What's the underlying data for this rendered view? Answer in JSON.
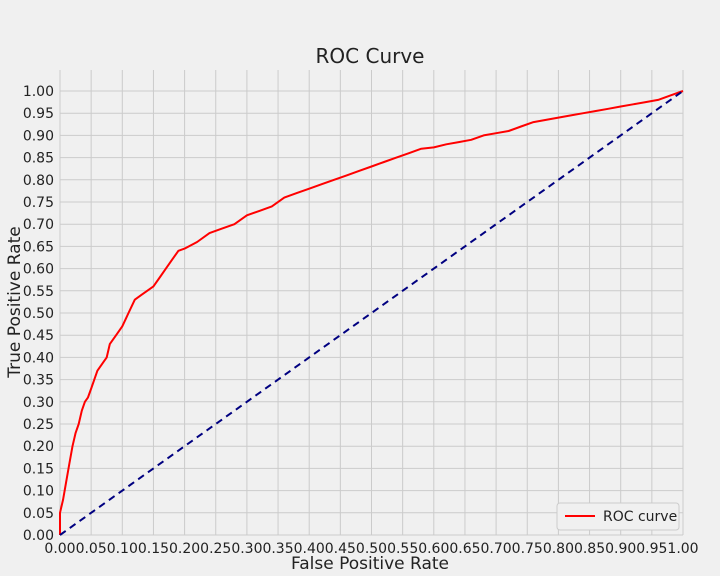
{
  "chart_data": {
    "type": "line",
    "title": "ROC Curve",
    "xlabel": "False Positive Rate",
    "ylabel": "True Positive Rate",
    "xlim": [
      0,
      1
    ],
    "ylim": [
      0,
      1
    ],
    "grid": true,
    "legend_position": "bottom-right",
    "x_ticks": [
      "0.00",
      "0.05",
      "0.10",
      "0.15",
      "0.20",
      "0.25",
      "0.30",
      "0.35",
      "0.40",
      "0.45",
      "0.50",
      "0.55",
      "0.60",
      "0.65",
      "0.70",
      "0.75",
      "0.80",
      "0.85",
      "0.90",
      "0.95",
      "1.00"
    ],
    "y_ticks": [
      "0.00",
      "0.05",
      "0.10",
      "0.15",
      "0.20",
      "0.25",
      "0.30",
      "0.35",
      "0.40",
      "0.45",
      "0.50",
      "0.55",
      "0.60",
      "0.65",
      "0.70",
      "0.75",
      "0.80",
      "0.85",
      "0.90",
      "0.95",
      "1.00"
    ],
    "series": [
      {
        "name": "ROC curve",
        "color": "#ff0000",
        "style": "solid",
        "x": [
          0.0,
          0.0,
          0.005,
          0.01,
          0.015,
          0.02,
          0.025,
          0.03,
          0.035,
          0.04,
          0.045,
          0.05,
          0.06,
          0.07,
          0.075,
          0.08,
          0.09,
          0.1,
          0.11,
          0.12,
          0.13,
          0.14,
          0.15,
          0.16,
          0.17,
          0.18,
          0.19,
          0.2,
          0.22,
          0.24,
          0.26,
          0.28,
          0.3,
          0.32,
          0.34,
          0.36,
          0.38,
          0.4,
          0.42,
          0.44,
          0.46,
          0.48,
          0.5,
          0.52,
          0.54,
          0.56,
          0.58,
          0.6,
          0.62,
          0.64,
          0.66,
          0.68,
          0.7,
          0.72,
          0.74,
          0.76,
          0.78,
          0.8,
          0.82,
          0.84,
          0.86,
          0.88,
          0.9,
          0.92,
          0.94,
          0.96,
          0.98,
          1.0
        ],
        "y": [
          0.0,
          0.05,
          0.08,
          0.12,
          0.16,
          0.2,
          0.23,
          0.25,
          0.28,
          0.3,
          0.31,
          0.33,
          0.37,
          0.39,
          0.4,
          0.43,
          0.45,
          0.47,
          0.5,
          0.53,
          0.54,
          0.55,
          0.56,
          0.58,
          0.6,
          0.62,
          0.64,
          0.645,
          0.66,
          0.68,
          0.69,
          0.7,
          0.72,
          0.73,
          0.74,
          0.76,
          0.77,
          0.78,
          0.79,
          0.8,
          0.81,
          0.82,
          0.83,
          0.84,
          0.85,
          0.86,
          0.87,
          0.873,
          0.88,
          0.885,
          0.89,
          0.9,
          0.905,
          0.91,
          0.92,
          0.93,
          0.935,
          0.94,
          0.945,
          0.95,
          0.955,
          0.96,
          0.965,
          0.97,
          0.975,
          0.98,
          0.99,
          1.0
        ]
      },
      {
        "color": "#000080",
        "style": "dashed",
        "x": [
          0,
          1
        ],
        "y": [
          0,
          1
        ]
      }
    ]
  }
}
